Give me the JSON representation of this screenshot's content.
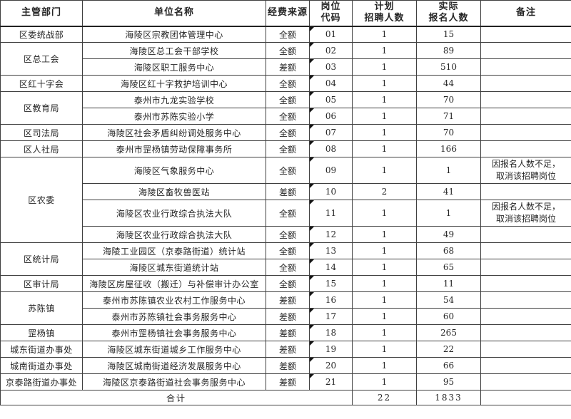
{
  "table": {
    "headers": [
      "主管部门",
      "单位名称",
      "经费来源",
      "岗位\n代码",
      "计划\n招聘人数",
      "实际\n报名人数",
      "备注"
    ],
    "rows": [
      {
        "dept": "区委统战部",
        "dept_span": 1,
        "unit": "海陵区宗教团体管理中心",
        "fund": "全额",
        "code": "01",
        "planned": "1",
        "applicants": "15",
        "remark": ""
      },
      {
        "dept": "区总工会",
        "dept_span": 2,
        "unit": "海陵区总工会干部学校",
        "fund": "全额",
        "code": "02",
        "planned": "1",
        "applicants": "89",
        "remark": ""
      },
      {
        "unit": "海陵区职工服务中心",
        "fund": "差额",
        "code": "03",
        "planned": "1",
        "applicants": "510",
        "remark": ""
      },
      {
        "dept": "区红十字会",
        "dept_span": 1,
        "unit": "海陵区红十字救护培训中心",
        "fund": "全额",
        "code": "04",
        "planned": "1",
        "applicants": "44",
        "remark": ""
      },
      {
        "dept": "区教育局",
        "dept_span": 2,
        "unit": "泰州市九龙实验学校",
        "fund": "全额",
        "code": "05",
        "planned": "1",
        "applicants": "70",
        "remark": ""
      },
      {
        "unit": "泰州市苏陈实验小学",
        "fund": "全额",
        "code": "06",
        "planned": "1",
        "applicants": "71",
        "remark": ""
      },
      {
        "dept": "区司法局",
        "dept_span": 1,
        "unit": "海陵区社会矛盾纠纷调处服务中心",
        "fund": "全额",
        "code": "07",
        "planned": "1",
        "applicants": "70",
        "remark": ""
      },
      {
        "dept": "区人社局",
        "dept_span": 1,
        "unit": "泰州市罡杨镇劳动保障事务所",
        "fund": "全额",
        "code": "08",
        "planned": "1",
        "applicants": "166",
        "remark": ""
      },
      {
        "dept": "区农委",
        "dept_span": 4,
        "unit": "海陵区气象服务中心",
        "fund": "全额",
        "code": "09",
        "planned": "1",
        "applicants": "1",
        "remark": "因报名人数不足，\n取消该招聘岗位",
        "tall": true
      },
      {
        "unit": "海陵区畜牧兽医站",
        "fund": "差额",
        "code": "10",
        "planned": "2",
        "applicants": "41",
        "remark": ""
      },
      {
        "unit": "海陵区农业行政综合执法大队",
        "fund": "全额",
        "code": "11",
        "planned": "1",
        "applicants": "1",
        "remark": "因报名人数不足，\n取消该招聘岗位",
        "tall": true
      },
      {
        "unit": "海陵区农业行政综合执法大队",
        "fund": "全额",
        "code": "12",
        "planned": "1",
        "applicants": "49",
        "remark": ""
      },
      {
        "dept": "区统计局",
        "dept_span": 2,
        "unit": "海陵工业园区（京泰路街道）统计站",
        "fund": "全额",
        "code": "13",
        "planned": "1",
        "applicants": "68",
        "remark": ""
      },
      {
        "unit": "海陵区城东街道统计站",
        "fund": "全额",
        "code": "14",
        "planned": "1",
        "applicants": "65",
        "remark": ""
      },
      {
        "dept": "区审计局",
        "dept_span": 1,
        "unit": "海陵区房屋征收（搬迁）与补偿审计办公室",
        "fund": "全额",
        "code": "15",
        "planned": "1",
        "applicants": "11",
        "remark": ""
      },
      {
        "dept": "苏陈镇",
        "dept_span": 2,
        "unit": "泰州市苏陈镇农业农村工作服务中心",
        "fund": "差额",
        "code": "16",
        "planned": "1",
        "applicants": "54",
        "remark": ""
      },
      {
        "unit": "泰州市苏陈镇社会事务服务中心",
        "fund": "差额",
        "code": "17",
        "planned": "1",
        "applicants": "60",
        "remark": ""
      },
      {
        "dept": "罡杨镇",
        "dept_span": 1,
        "unit": "泰州市罡杨镇社会事务服务中心",
        "fund": "差额",
        "code": "18",
        "planned": "1",
        "applicants": "265",
        "remark": ""
      },
      {
        "dept": "城东街道办事处",
        "dept_span": 1,
        "unit": "海陵区城东街道城乡工作服务中心",
        "fund": "差额",
        "code": "19",
        "planned": "1",
        "applicants": "22",
        "remark": ""
      },
      {
        "dept": "城南街道办事处",
        "dept_span": 1,
        "unit": "海陵区城南街道经济发展服务中心",
        "fund": "差额",
        "code": "20",
        "planned": "1",
        "applicants": "66",
        "remark": ""
      },
      {
        "dept": "京泰路街道办事处",
        "dept_span": 1,
        "unit": "海陵区京泰路街道社会事务服务中心",
        "fund": "差额",
        "code": "21",
        "planned": "1",
        "applicants": "95",
        "remark": ""
      }
    ],
    "total": {
      "label": "合计",
      "planned": "22",
      "applicants": "1833",
      "remark": ""
    },
    "colors": {
      "border": "#3f3f3f",
      "text": "#262626",
      "comment_marker": "#151515",
      "background": "#ffffff"
    }
  }
}
